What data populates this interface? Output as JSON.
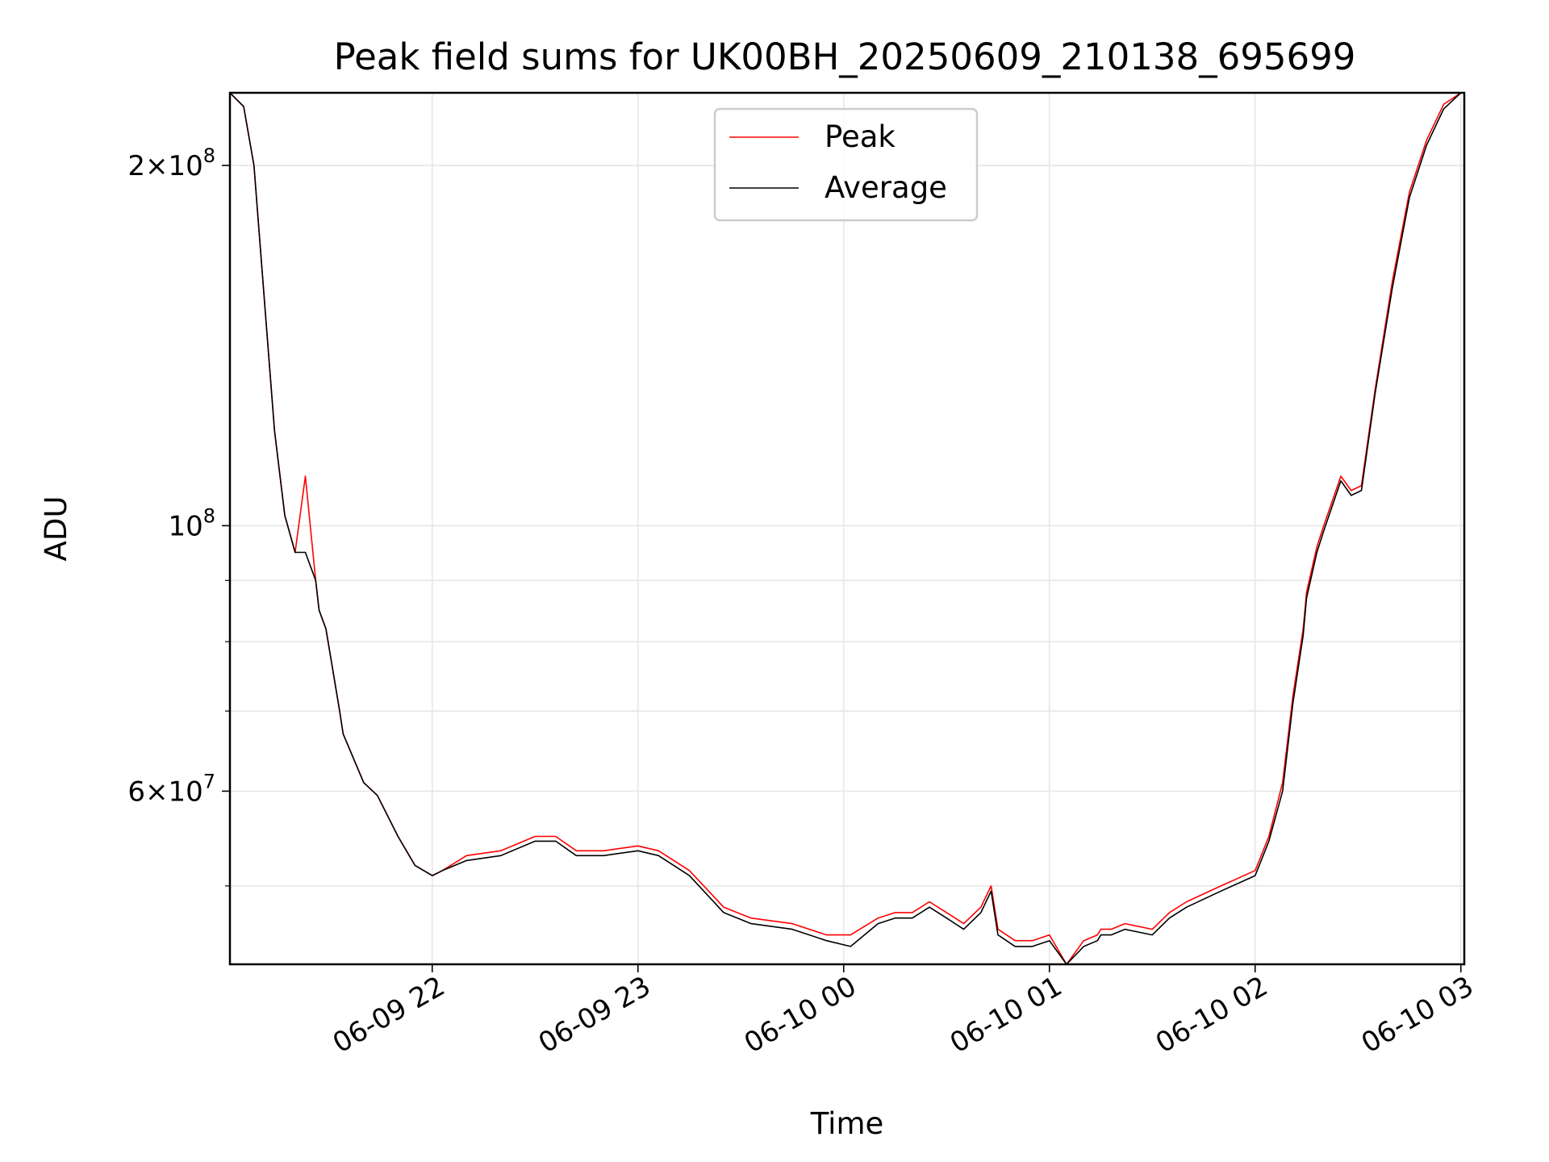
{
  "chart_data": {
    "type": "line",
    "title": "Peak field sums for UK00BH_20250609_210138_695699",
    "xlabel": "Time",
    "ylabel": "ADU",
    "yscale": "log",
    "grid": true,
    "legend_position": "top-center",
    "x_tick_labels": [
      "06-09 22",
      "06-09 23",
      "06-10 00",
      "06-10 01",
      "06-10 02",
      "06-10 03"
    ],
    "y_tick_labels": [
      {
        "value": 200000000,
        "mantissa": "2×10",
        "exp": "8"
      },
      {
        "value": 100000000,
        "mantissa": "10",
        "exp": "8"
      },
      {
        "value": 60000000,
        "mantissa": "6×10",
        "exp": "7"
      }
    ],
    "xlim": [
      "2025-06-09 21:01",
      "2025-06-10 03:01"
    ],
    "ylim": [
      43000000,
      230000000
    ],
    "series": [
      {
        "name": "Peak",
        "color": "#ff0000",
        "x": [
          "2025-06-09 21:01",
          "2025-06-09 21:05",
          "2025-06-09 21:08",
          "2025-06-09 21:11",
          "2025-06-09 21:14",
          "2025-06-09 21:17",
          "2025-06-09 21:20",
          "2025-06-09 21:23",
          "2025-06-09 21:26",
          "2025-06-09 21:27",
          "2025-06-09 21:29",
          "2025-06-09 21:33",
          "2025-06-09 21:34",
          "2025-06-09 21:40",
          "2025-06-09 21:44",
          "2025-06-09 21:50",
          "2025-06-09 21:55",
          "2025-06-09 22:00",
          "2025-06-09 22:03",
          "2025-06-09 22:10",
          "2025-06-09 22:20",
          "2025-06-09 22:30",
          "2025-06-09 22:36",
          "2025-06-09 22:42",
          "2025-06-09 22:50",
          "2025-06-09 23:00",
          "2025-06-09 23:06",
          "2025-06-09 23:15",
          "2025-06-09 23:25",
          "2025-06-09 23:33",
          "2025-06-09 23:45",
          "2025-06-09 23:55",
          "2025-06-10 00:02",
          "2025-06-10 00:10",
          "2025-06-10 00:15",
          "2025-06-10 00:20",
          "2025-06-10 00:25",
          "2025-06-10 00:30",
          "2025-06-10 00:35",
          "2025-06-10 00:40",
          "2025-06-10 00:43",
          "2025-06-10 00:45",
          "2025-06-10 00:50",
          "2025-06-10 00:55",
          "2025-06-10 01:00",
          "2025-06-10 01:05",
          "2025-06-10 01:10",
          "2025-06-10 01:14",
          "2025-06-10 01:15",
          "2025-06-10 01:18",
          "2025-06-10 01:22",
          "2025-06-10 01:30",
          "2025-06-10 01:35",
          "2025-06-10 01:40",
          "2025-06-10 01:50",
          "2025-06-10 02:00",
          "2025-06-10 02:04",
          "2025-06-10 02:08",
          "2025-06-10 02:11",
          "2025-06-10 02:14",
          "2025-06-10 02:15",
          "2025-06-10 02:18",
          "2025-06-10 02:20",
          "2025-06-10 02:25",
          "2025-06-10 02:28",
          "2025-06-10 02:31",
          "2025-06-10 02:35",
          "2025-06-10 02:40",
          "2025-06-10 02:45",
          "2025-06-10 02:50",
          "2025-06-10 02:55",
          "2025-06-10 03:00",
          "2025-06-10 03:01"
        ],
        "y": [
          230000000,
          224000000,
          200000000,
          155000000,
          120000000,
          102000000,
          95000000,
          110000000,
          90000000,
          85000000,
          82000000,
          70000000,
          67000000,
          61000000,
          59500000,
          55000000,
          52000000,
          51000000,
          51500000,
          53000000,
          53500000,
          55000000,
          55000000,
          53500000,
          53500000,
          54000000,
          53500000,
          51500000,
          48000000,
          47000000,
          46500000,
          45500000,
          45500000,
          47000000,
          47500000,
          47500000,
          48500000,
          47500000,
          46500000,
          48000000,
          50000000,
          46000000,
          45000000,
          45000000,
          45500000,
          43000000,
          45000000,
          45500000,
          46000000,
          46000000,
          46500000,
          46000000,
          47500000,
          48500000,
          50000000,
          51500000,
          55000000,
          61000000,
          72000000,
          82000000,
          88000000,
          96000000,
          100000000,
          110000000,
          107000000,
          108000000,
          130000000,
          160000000,
          190000000,
          210000000,
          225000000,
          230000000,
          230000000
        ]
      },
      {
        "name": "Average",
        "color": "#000000",
        "x": [
          "2025-06-09 21:01",
          "2025-06-09 21:05",
          "2025-06-09 21:08",
          "2025-06-09 21:11",
          "2025-06-09 21:14",
          "2025-06-09 21:17",
          "2025-06-09 21:20",
          "2025-06-09 21:23",
          "2025-06-09 21:26",
          "2025-06-09 21:27",
          "2025-06-09 21:29",
          "2025-06-09 21:33",
          "2025-06-09 21:34",
          "2025-06-09 21:40",
          "2025-06-09 21:44",
          "2025-06-09 21:50",
          "2025-06-09 21:55",
          "2025-06-09 22:00",
          "2025-06-09 22:03",
          "2025-06-09 22:10",
          "2025-06-09 22:20",
          "2025-06-09 22:30",
          "2025-06-09 22:36",
          "2025-06-09 22:42",
          "2025-06-09 22:50",
          "2025-06-09 23:00",
          "2025-06-09 23:06",
          "2025-06-09 23:15",
          "2025-06-09 23:25",
          "2025-06-09 23:33",
          "2025-06-09 23:45",
          "2025-06-09 23:55",
          "2025-06-10 00:02",
          "2025-06-10 00:10",
          "2025-06-10 00:15",
          "2025-06-10 00:20",
          "2025-06-10 00:25",
          "2025-06-10 00:30",
          "2025-06-10 00:35",
          "2025-06-10 00:40",
          "2025-06-10 00:43",
          "2025-06-10 00:45",
          "2025-06-10 00:50",
          "2025-06-10 00:55",
          "2025-06-10 01:00",
          "2025-06-10 01:05",
          "2025-06-10 01:10",
          "2025-06-10 01:14",
          "2025-06-10 01:15",
          "2025-06-10 01:18",
          "2025-06-10 01:22",
          "2025-06-10 01:30",
          "2025-06-10 01:35",
          "2025-06-10 01:40",
          "2025-06-10 01:50",
          "2025-06-10 02:00",
          "2025-06-10 02:04",
          "2025-06-10 02:08",
          "2025-06-10 02:11",
          "2025-06-10 02:14",
          "2025-06-10 02:15",
          "2025-06-10 02:18",
          "2025-06-10 02:20",
          "2025-06-10 02:25",
          "2025-06-10 02:28",
          "2025-06-10 02:31",
          "2025-06-10 02:35",
          "2025-06-10 02:40",
          "2025-06-10 02:45",
          "2025-06-10 02:50",
          "2025-06-10 02:55",
          "2025-06-10 03:00",
          "2025-06-10 03:01"
        ],
        "y": [
          230000000,
          224000000,
          200000000,
          155000000,
          120000000,
          102000000,
          95000000,
          95000000,
          90000000,
          85000000,
          82000000,
          70000000,
          67000000,
          61000000,
          59500000,
          55000000,
          52000000,
          51000000,
          51500000,
          52500000,
          53000000,
          54500000,
          54500000,
          53000000,
          53000000,
          53500000,
          53000000,
          51000000,
          47500000,
          46500000,
          46000000,
          45000000,
          44500000,
          46500000,
          47000000,
          47000000,
          48000000,
          47000000,
          46000000,
          47500000,
          49500000,
          45500000,
          44500000,
          44500000,
          45000000,
          43000000,
          44500000,
          45000000,
          45500000,
          45500000,
          46000000,
          45500000,
          47000000,
          48000000,
          49500000,
          51000000,
          54500000,
          60000000,
          71000000,
          81000000,
          87000000,
          95000000,
          99000000,
          109000000,
          106000000,
          107000000,
          129000000,
          158000000,
          188000000,
          208000000,
          223000000,
          230000000,
          230000000
        ]
      }
    ]
  }
}
